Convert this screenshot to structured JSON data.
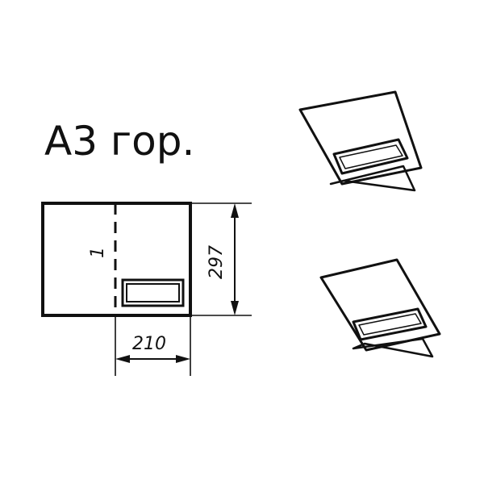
{
  "title": "А3 гор.",
  "fold_line_label": "1",
  "dimensions": {
    "width_label": "210",
    "height_label": "297"
  },
  "colors": {
    "ink": "#111111",
    "background": "#ffffff"
  }
}
